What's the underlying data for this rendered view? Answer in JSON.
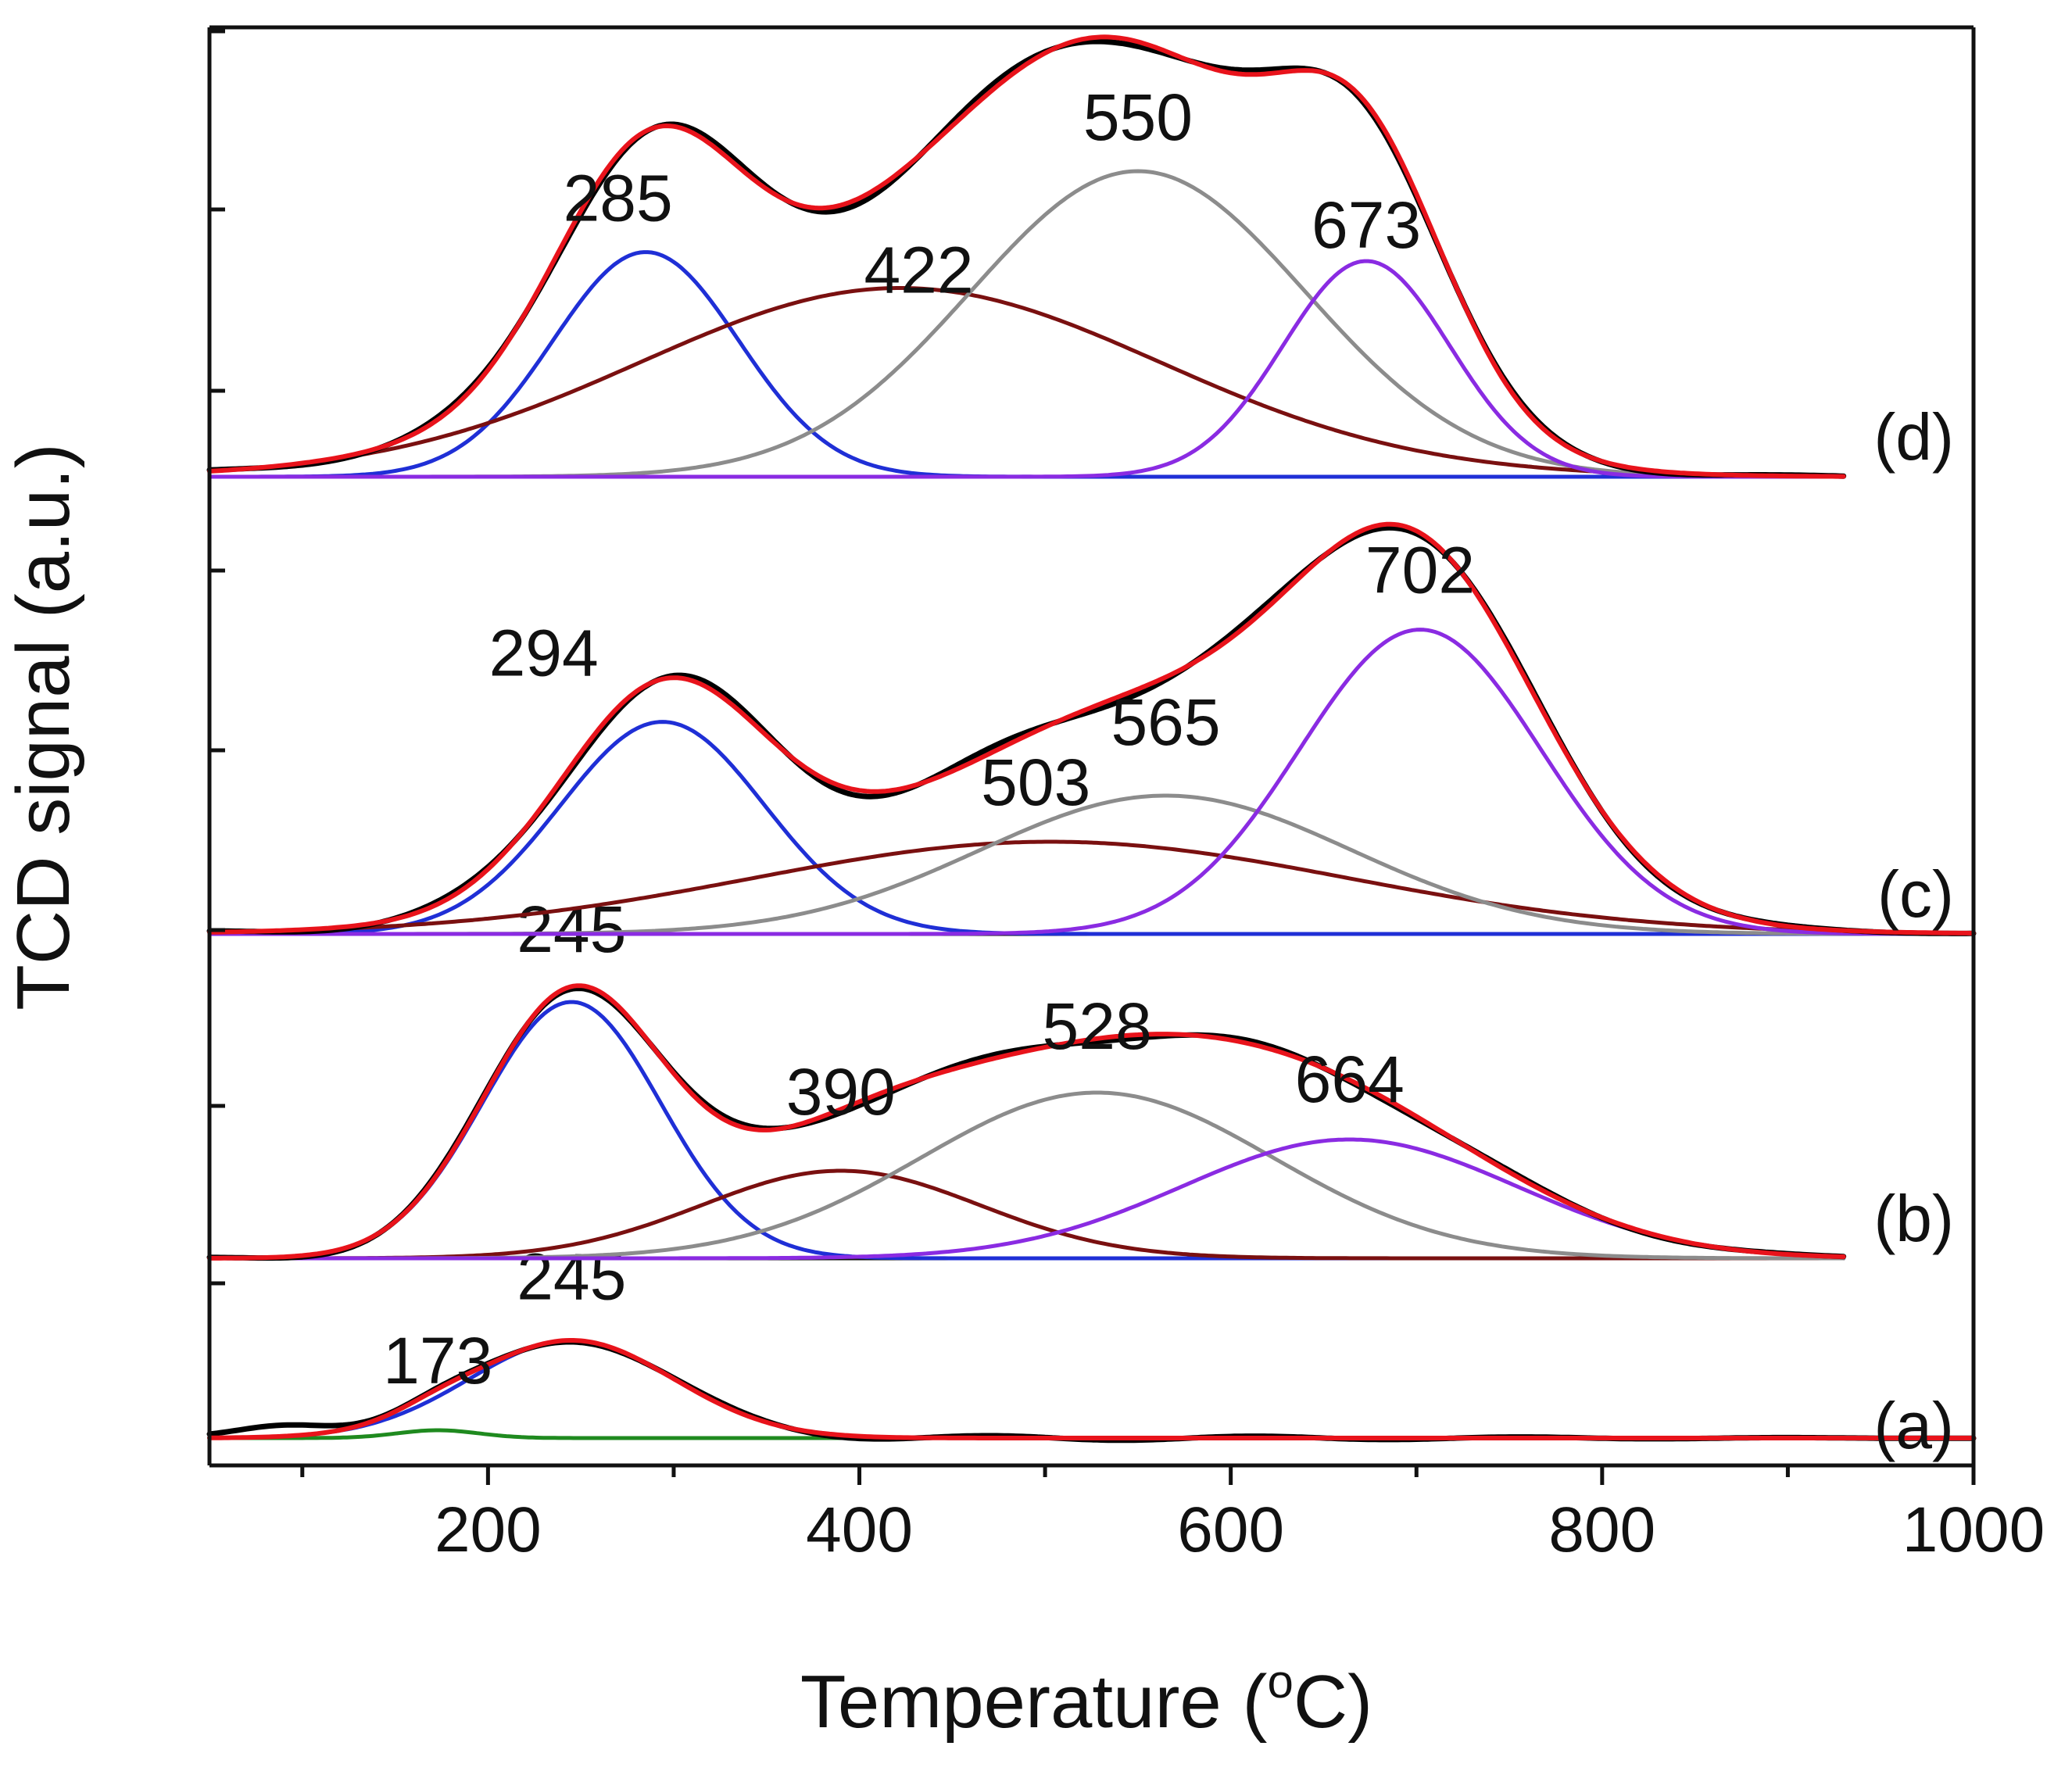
{
  "chart_data": {
    "type": "line",
    "title": "",
    "xlabel": "Temperature (°C)",
    "xlabel_parts": {
      "before": "Temperature (",
      "sup": "o",
      "after": "C)"
    },
    "ylabel": "TCD signal (a.u.)",
    "xlim": [
      50,
      1000
    ],
    "xticks": [
      200,
      400,
      600,
      800,
      1000
    ],
    "grid": false,
    "legend": "none",
    "colors": {
      "measured": "#000000",
      "fit": "#e8131b",
      "peak1": "#1f2fd6",
      "peak2": "#7a1010",
      "peak3": "#8c8c8c",
      "peak4": "#8a2be2",
      "peak_low": "#1f8a1f"
    },
    "panels": [
      {
        "label": "(a)",
        "ylim": [
          0,
          1
        ],
        "baseline": 0.14,
        "peaks": [
          {
            "center": 173,
            "height": 0.04,
            "width": 22,
            "color": "peak_low"
          },
          {
            "center": 245,
            "height": 0.5,
            "width": 55,
            "color": "peak1"
          }
        ],
        "bumps": [
          {
            "center": 90,
            "height": 0.06,
            "width": 25
          }
        ],
        "annotations": [
          {
            "text": "173",
            "x": 173,
            "y": 0.42
          },
          {
            "text": "245",
            "x": 245,
            "y": 0.85
          }
        ]
      },
      {
        "label": "(b)",
        "ylim": [
          0,
          1
        ],
        "baseline": 0.0,
        "peaks": [
          {
            "center": 245,
            "height": 0.82,
            "width": 48,
            "color": "peak1"
          },
          {
            "center": 390,
            "height": 0.28,
            "width": 75,
            "color": "peak2"
          },
          {
            "center": 528,
            "height": 0.53,
            "width": 95,
            "color": "peak3"
          },
          {
            "center": 664,
            "height": 0.38,
            "width": 90,
            "color": "peak4"
          }
        ],
        "bumps": [],
        "annotations": [
          {
            "text": "245",
            "x": 245,
            "y": 0.98
          },
          {
            "text": "390",
            "x": 390,
            "y": 0.46
          },
          {
            "text": "528",
            "x": 528,
            "y": 0.67
          },
          {
            "text": "664",
            "x": 664,
            "y": 0.5
          }
        ]
      },
      {
        "label": "(c)",
        "ylim": [
          0,
          1
        ],
        "baseline": 0.0,
        "peaks": [
          {
            "center": 294,
            "height": 0.46,
            "width": 55,
            "color": "peak1"
          },
          {
            "center": 503,
            "height": 0.2,
            "width": 160,
            "color": "peak2"
          },
          {
            "center": 565,
            "height": 0.3,
            "width": 100,
            "color": "peak3"
          },
          {
            "center": 702,
            "height": 0.66,
            "width": 65,
            "color": "peak4"
          }
        ],
        "bumps": [],
        "annotations": [
          {
            "text": "294",
            "x": 230,
            "y": 0.56
          },
          {
            "text": "503",
            "x": 495,
            "y": 0.28
          },
          {
            "text": "565",
            "x": 565,
            "y": 0.41
          },
          {
            "text": "702",
            "x": 702,
            "y": 0.74
          }
        ]
      },
      {
        "label": "(d)",
        "ylim": [
          0,
          1
        ],
        "baseline": 0.0,
        "peaks": [
          {
            "center": 285,
            "height": 0.5,
            "width": 50,
            "color": "peak1"
          },
          {
            "center": 422,
            "height": 0.42,
            "width": 140,
            "color": "peak2"
          },
          {
            "center": 550,
            "height": 0.68,
            "width": 90,
            "color": "peak3"
          },
          {
            "center": 673,
            "height": 0.48,
            "width": 45,
            "color": "peak4"
          }
        ],
        "bumps": [],
        "annotations": [
          {
            "text": "285",
            "x": 270,
            "y": 0.57
          },
          {
            "text": "422",
            "x": 432,
            "y": 0.41
          },
          {
            "text": "550",
            "x": 550,
            "y": 0.75
          },
          {
            "text": "673",
            "x": 673,
            "y": 0.51
          }
        ]
      }
    ]
  }
}
